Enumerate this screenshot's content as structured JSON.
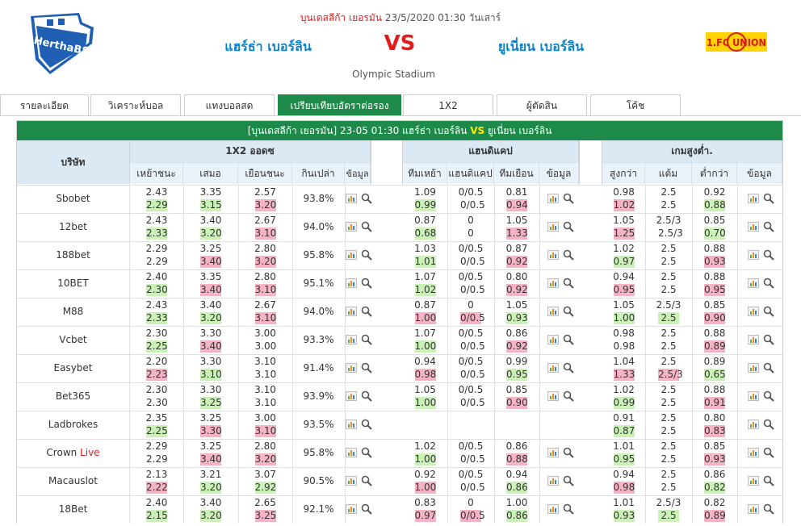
{
  "header": {
    "league": "บุนเดสลีก้า เยอรมัน",
    "datetime": "23/5/2020 01:30 วันเสาร์",
    "home_team": "แฮร์ธ่า เบอร์ลิน",
    "vs": "VS",
    "away_team": "ยูเนี่ยน เบอร์ลิน",
    "stadium": "Olympic Stadium",
    "home_logo_text": "HerthaBSC",
    "away_logo_text": "1.FC UNION"
  },
  "tabs": [
    "รายละเอียด",
    "วิเคราะห์บอล",
    "แทงบอลสด",
    "เปรียบเทียบอัตราต่อรอง",
    "1X2",
    "ผู้ตัดสิน",
    "โค้ช"
  ],
  "active_tab": 3,
  "table": {
    "title_league": "[บุนเดสลีก้า เยอรมัน]",
    "title_datetime": "23-05 01:30",
    "title_home": "แฮร์ธ่า เบอร์ลิน",
    "title_vs": "VS",
    "title_away": "ยูเนี่ยน เบอร์ลิน",
    "company_header": "บริษัท",
    "group_1x2": "1X2 ออดซ",
    "group_handicap": "แฮนดิแคป",
    "group_ou": "เกมสูงต่ำ.",
    "cols_1x2": [
      "เหย้าชนะ",
      "เสมอ",
      "เยือนชนะ",
      "กินเปล่า",
      "ข้อมูล"
    ],
    "cols_handicap": [
      "ทีมเหย้า",
      "แฮนดิแคป",
      "ทีมเยือน",
      "ข้อมูล"
    ],
    "cols_ou": [
      "สูงกว่า",
      "แต้ม",
      "ต่ำกว่า",
      "ข้อมูล"
    ]
  },
  "rows": [
    {
      "company": "Sbobet",
      "live": "",
      "x": [
        [
          "2.43",
          "2.29",
          "up"
        ],
        [
          "3.35",
          "3.15",
          "up"
        ],
        [
          "2.57",
          "3.20",
          "dn"
        ]
      ],
      "ret": "93.8%",
      "h": [
        [
          "1.09",
          "0.99",
          "up"
        ],
        [
          "0/0.5",
          "0/0.5",
          ""
        ],
        [
          "0.81",
          "0.94",
          "dn"
        ]
      ],
      "o": [
        [
          "0.98",
          "1.02",
          "dn"
        ],
        [
          "2.5",
          "2.5",
          ""
        ],
        [
          "0.92",
          "0.88",
          "up"
        ]
      ]
    },
    {
      "company": "12bet",
      "live": "",
      "x": [
        [
          "2.43",
          "2.33",
          "up"
        ],
        [
          "3.40",
          "3.20",
          "up"
        ],
        [
          "2.67",
          "3.10",
          "dn"
        ]
      ],
      "ret": "94.0%",
      "h": [
        [
          "0.87",
          "0.68",
          "up"
        ],
        [
          "0",
          "0",
          ""
        ],
        [
          "1.05",
          "1.33",
          "dn"
        ]
      ],
      "o": [
        [
          "1.05",
          "1.25",
          "dn"
        ],
        [
          "2.5/3",
          "2.5/3",
          ""
        ],
        [
          "0.85",
          "0.70",
          "up"
        ]
      ]
    },
    {
      "company": "188bet",
      "live": "",
      "x": [
        [
          "2.29",
          "2.29",
          ""
        ],
        [
          "3.25",
          "3.40",
          "dn"
        ],
        [
          "2.80",
          "3.20",
          "dn"
        ]
      ],
      "ret": "95.8%",
      "h": [
        [
          "1.03",
          "1.01",
          "up"
        ],
        [
          "0/0.5",
          "0/0.5",
          ""
        ],
        [
          "0.87",
          "0.92",
          "dn"
        ]
      ],
      "o": [
        [
          "1.02",
          "0.97",
          "up"
        ],
        [
          "2.5",
          "2.5",
          ""
        ],
        [
          "0.88",
          "0.93",
          "dn"
        ]
      ]
    },
    {
      "company": "10BET",
      "live": "",
      "x": [
        [
          "2.40",
          "2.30",
          "up"
        ],
        [
          "3.35",
          "3.40",
          "dn"
        ],
        [
          "2.80",
          "3.10",
          "dn"
        ]
      ],
      "ret": "95.1%",
      "h": [
        [
          "1.07",
          "1.02",
          "up"
        ],
        [
          "0/0.5",
          "0/0.5",
          ""
        ],
        [
          "0.80",
          "0.92",
          "dn"
        ]
      ],
      "o": [
        [
          "0.94",
          "0.95",
          "dn"
        ],
        [
          "2.5",
          "2.5",
          ""
        ],
        [
          "0.88",
          "0.95",
          "dn"
        ]
      ]
    },
    {
      "company": "M88",
      "live": "",
      "x": [
        [
          "2.43",
          "2.33",
          "up"
        ],
        [
          "3.40",
          "3.20",
          "up"
        ],
        [
          "2.67",
          "3.10",
          "dn"
        ]
      ],
      "ret": "94.0%",
      "h": [
        [
          "0.87",
          "1.00",
          "dn"
        ],
        [
          "0",
          "0/0.5",
          "dn"
        ],
        [
          "1.05",
          "0.93",
          "up"
        ]
      ],
      "o": [
        [
          "1.05",
          "1.00",
          "up"
        ],
        [
          "2.5/3",
          "2.5",
          "up"
        ],
        [
          "0.85",
          "0.90",
          "dn"
        ]
      ]
    },
    {
      "company": "Vcbet",
      "live": "",
      "x": [
        [
          "2.30",
          "2.25",
          "up"
        ],
        [
          "3.30",
          "3.40",
          "dn"
        ],
        [
          "3.00",
          "3.00",
          ""
        ]
      ],
      "ret": "93.3%",
      "h": [
        [
          "1.07",
          "1.00",
          "up"
        ],
        [
          "0/0.5",
          "0/0.5",
          ""
        ],
        [
          "0.86",
          "0.92",
          "dn"
        ]
      ],
      "o": [
        [
          "0.98",
          "0.98",
          ""
        ],
        [
          "2.5",
          "2.5",
          ""
        ],
        [
          "0.88",
          "0.89",
          "dn"
        ]
      ]
    },
    {
      "company": "Easybet",
      "live": "",
      "x": [
        [
          "2.20",
          "2.23",
          "dn"
        ],
        [
          "3.30",
          "3.10",
          "up"
        ],
        [
          "3.10",
          "3.10",
          ""
        ]
      ],
      "ret": "91.4%",
      "h": [
        [
          "0.94",
          "0.98",
          "dn"
        ],
        [
          "0/0.5",
          "0/0.5",
          ""
        ],
        [
          "0.99",
          "0.95",
          "up"
        ]
      ],
      "o": [
        [
          "1.04",
          "1.33",
          "dn"
        ],
        [
          "2.5",
          "2.5/3",
          "dn"
        ],
        [
          "0.89",
          "0.65",
          "up"
        ]
      ]
    },
    {
      "company": "Bet365",
      "live": "",
      "x": [
        [
          "2.30",
          "2.30",
          ""
        ],
        [
          "3.30",
          "3.25",
          "up"
        ],
        [
          "3.10",
          "3.10",
          ""
        ]
      ],
      "ret": "93.9%",
      "h": [
        [
          "1.05",
          "1.00",
          "up"
        ],
        [
          "0/0.5",
          "0/0.5",
          ""
        ],
        [
          "0.85",
          "0.90",
          "dn"
        ]
      ],
      "o": [
        [
          "1.02",
          "0.99",
          "up"
        ],
        [
          "2.5",
          "2.5",
          ""
        ],
        [
          "0.88",
          "0.91",
          "dn"
        ]
      ]
    },
    {
      "company": "Ladbrokes",
      "live": "",
      "x": [
        [
          "2.35",
          "2.25",
          "up"
        ],
        [
          "3.25",
          "3.30",
          "dn"
        ],
        [
          "3.00",
          "3.10",
          "dn"
        ]
      ],
      "ret": "93.5%",
      "h": null,
      "o": [
        [
          "0.91",
          "0.87",
          "up"
        ],
        [
          "2.5",
          "2.5",
          ""
        ],
        [
          "0.80",
          "0.83",
          "dn"
        ]
      ]
    },
    {
      "company": "Crown",
      "live": "Live",
      "x": [
        [
          "2.29",
          "2.29",
          ""
        ],
        [
          "3.25",
          "3.40",
          "dn"
        ],
        [
          "2.80",
          "3.20",
          "dn"
        ]
      ],
      "ret": "95.8%",
      "h": [
        [
          "1.02",
          "1.00",
          "up"
        ],
        [
          "0/0.5",
          "0/0.5",
          ""
        ],
        [
          "0.86",
          "0.88",
          "dn"
        ]
      ],
      "o": [
        [
          "1.01",
          "0.95",
          "up"
        ],
        [
          "2.5",
          "2.5",
          ""
        ],
        [
          "0.85",
          "0.93",
          "dn"
        ]
      ]
    },
    {
      "company": "Macauslot",
      "live": "",
      "x": [
        [
          "2.13",
          "2.22",
          "dn"
        ],
        [
          "3.21",
          "3.20",
          "up"
        ],
        [
          "3.07",
          "2.92",
          "up"
        ]
      ],
      "ret": "90.5%",
      "h": [
        [
          "0.92",
          "1.00",
          "dn"
        ],
        [
          "0/0.5",
          "0/0.5",
          ""
        ],
        [
          "0.94",
          "0.86",
          "up"
        ]
      ],
      "o": [
        [
          "0.94",
          "0.98",
          "dn"
        ],
        [
          "2.5",
          "2.5",
          ""
        ],
        [
          "0.86",
          "0.82",
          "up"
        ]
      ]
    },
    {
      "company": "18Bet",
      "live": "",
      "x": [
        [
          "2.40",
          "2.15",
          "up"
        ],
        [
          "3.40",
          "3.20",
          "up"
        ],
        [
          "2.65",
          "3.25",
          "dn"
        ]
      ],
      "ret": "92.1%",
      "h": [
        [
          "0.83",
          "0.97",
          "dn"
        ],
        [
          "0",
          "0/0.5",
          "dn"
        ],
        [
          "1.00",
          "0.86",
          "up"
        ]
      ],
      "o": [
        [
          "1.01",
          "0.93",
          "up"
        ],
        [
          "2.5/3",
          "2.5",
          "up"
        ],
        [
          "0.82",
          "0.89",
          "dn"
        ]
      ]
    }
  ],
  "colors": {
    "accent_green": "#1d8a4a",
    "up_green": "#cbf2b6",
    "down_red": "#f6b3c4",
    "title_red": "#e21b1b",
    "team_blue": "#0f82c6",
    "vs_yellow": "#ffe600"
  },
  "icons": {
    "chart": "bar-chart-icon",
    "search": "magnifier-icon"
  }
}
